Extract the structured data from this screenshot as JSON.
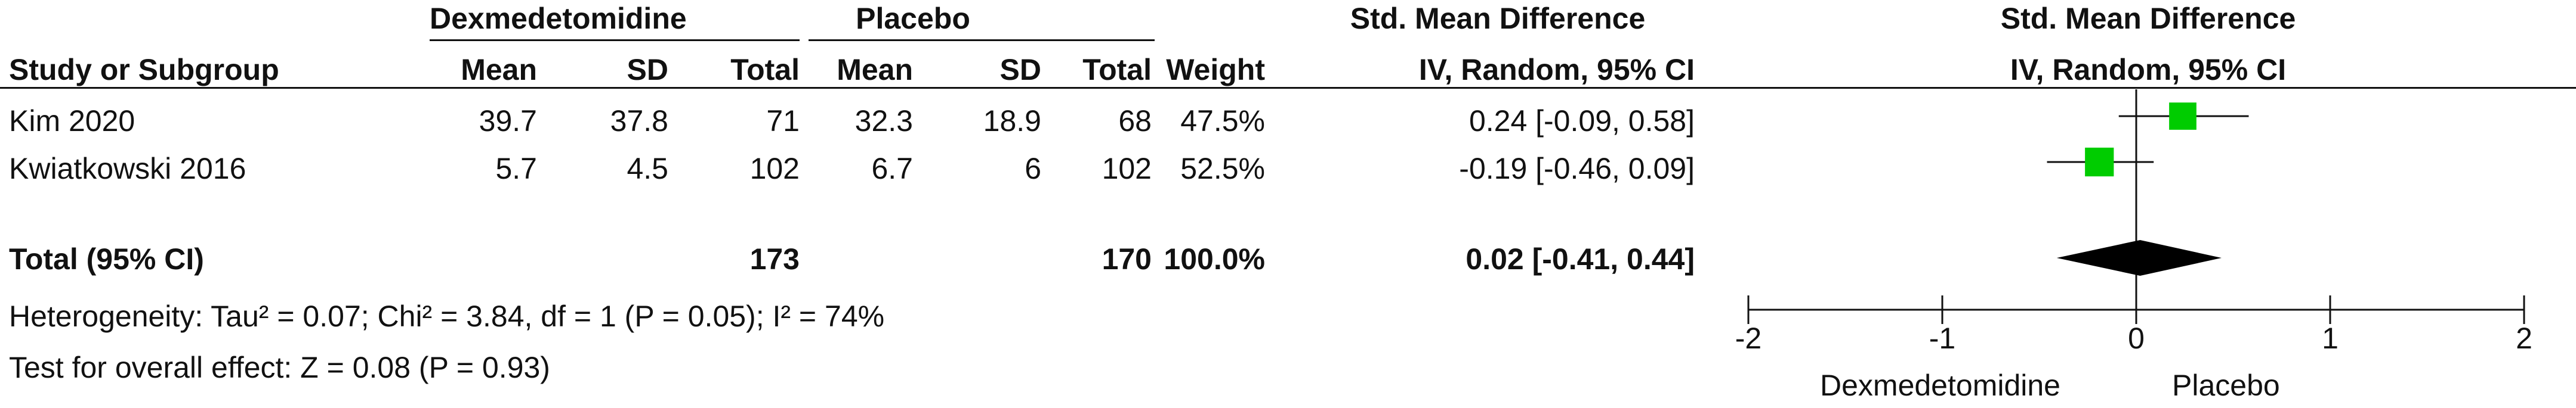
{
  "table": {
    "group_headers": {
      "experimental": "Dexmedetomidine",
      "control": "Placebo",
      "std_mean_diff": "Std. Mean Difference"
    },
    "columns": {
      "study": "Study or Subgroup",
      "exp_mean": "Mean",
      "exp_sd": "SD",
      "exp_total": "Total",
      "ctl_mean": "Mean",
      "ctl_sd": "SD",
      "ctl_total": "Total",
      "weight": "Weight",
      "effect": "IV, Random, 95% CI"
    },
    "studies": [
      {
        "name": "Kim 2020",
        "exp_mean": "39.7",
        "exp_sd": "37.8",
        "exp_total": "71",
        "ctl_mean": "32.3",
        "ctl_sd": "18.9",
        "ctl_total": "68",
        "weight": "47.5%",
        "effect_text": "0.24 [-0.09, 0.58]"
      },
      {
        "name": "Kwiatkowski 2016",
        "exp_mean": "5.7",
        "exp_sd": "4.5",
        "exp_total": "102",
        "ctl_mean": "6.7",
        "ctl_sd": "6",
        "ctl_total": "102",
        "weight": "52.5%",
        "effect_text": "-0.19 [-0.46, 0.09]"
      }
    ],
    "total": {
      "label": "Total (95% CI)",
      "exp_total": "173",
      "ctl_total": "170",
      "weight": "100.0%",
      "effect_text": "0.02 [-0.41, 0.44]"
    },
    "heterogeneity": "Heterogeneity: Tau² = 0.07; Chi² = 3.84, df = 1 (P = 0.05); I² = 74%",
    "overall_effect": "Test for overall effect: Z = 0.08 (P = 0.93)"
  },
  "plot": {
    "title": "Std. Mean Difference",
    "subtitle": "IV, Random, 95% CI",
    "favours_left": "Dexmedetomidine",
    "favours_right": "Placebo"
  },
  "colors": {
    "study_marker": "#00cc00",
    "summary_diamond": "#000000",
    "lines": "#111111"
  },
  "chart_data": {
    "type": "forest",
    "title": "Std. Mean Difference",
    "subtitle": "IV, Random, 95% CI",
    "xlim": [
      -2,
      2
    ],
    "ticks": [
      -2,
      -1,
      0,
      1,
      2
    ],
    "tick_labels": [
      "-2",
      "-1",
      "0",
      "1",
      "2"
    ],
    "studies": [
      {
        "name": "Kim 2020",
        "smd": 0.24,
        "ci": [
          -0.09,
          0.58
        ],
        "weight": 47.5
      },
      {
        "name": "Kwiatkowski 2016",
        "smd": -0.19,
        "ci": [
          -0.46,
          0.09
        ],
        "weight": 52.5
      }
    ],
    "summary": {
      "smd": 0.02,
      "ci": [
        -0.41,
        0.44
      ]
    }
  }
}
